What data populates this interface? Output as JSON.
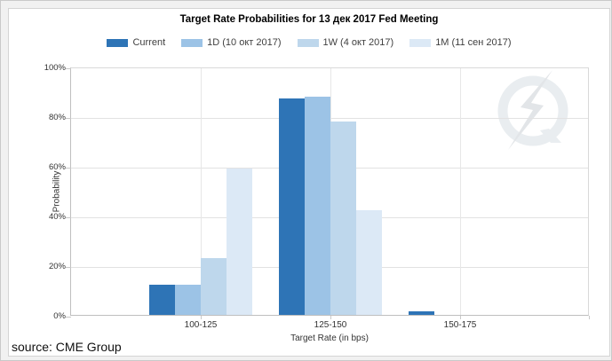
{
  "frame": {
    "source_label": "source: CME Group"
  },
  "chart_data": {
    "type": "bar",
    "title": "Target Rate Probabilities for 13 дек 2017 Fed Meeting",
    "categories": [
      "100-125",
      "125-150",
      "150-175"
    ],
    "series": [
      {
        "name": "Current",
        "color": "#2e74b6",
        "values": [
          12,
          87,
          1.3
        ]
      },
      {
        "name": "1D (10 окт 2017)",
        "color": "#9cc3e6",
        "values": [
          12,
          88,
          0
        ]
      },
      {
        "name": "1W (4 окт 2017)",
        "color": "#bed7ec",
        "values": [
          23,
          78,
          0
        ]
      },
      {
        "name": "1M (11 сен 2017)",
        "color": "#dce9f6",
        "values": [
          59,
          42,
          0
        ]
      }
    ],
    "xlabel": "Target Rate (in bps)",
    "ylabel": "Probability",
    "ylim": [
      0,
      100
    ],
    "yticks": [
      0,
      20,
      40,
      60,
      80,
      100
    ],
    "ytick_suffix": "%",
    "grid": true,
    "legend_position": "top-center",
    "watermark": "q-lightning-logo"
  }
}
